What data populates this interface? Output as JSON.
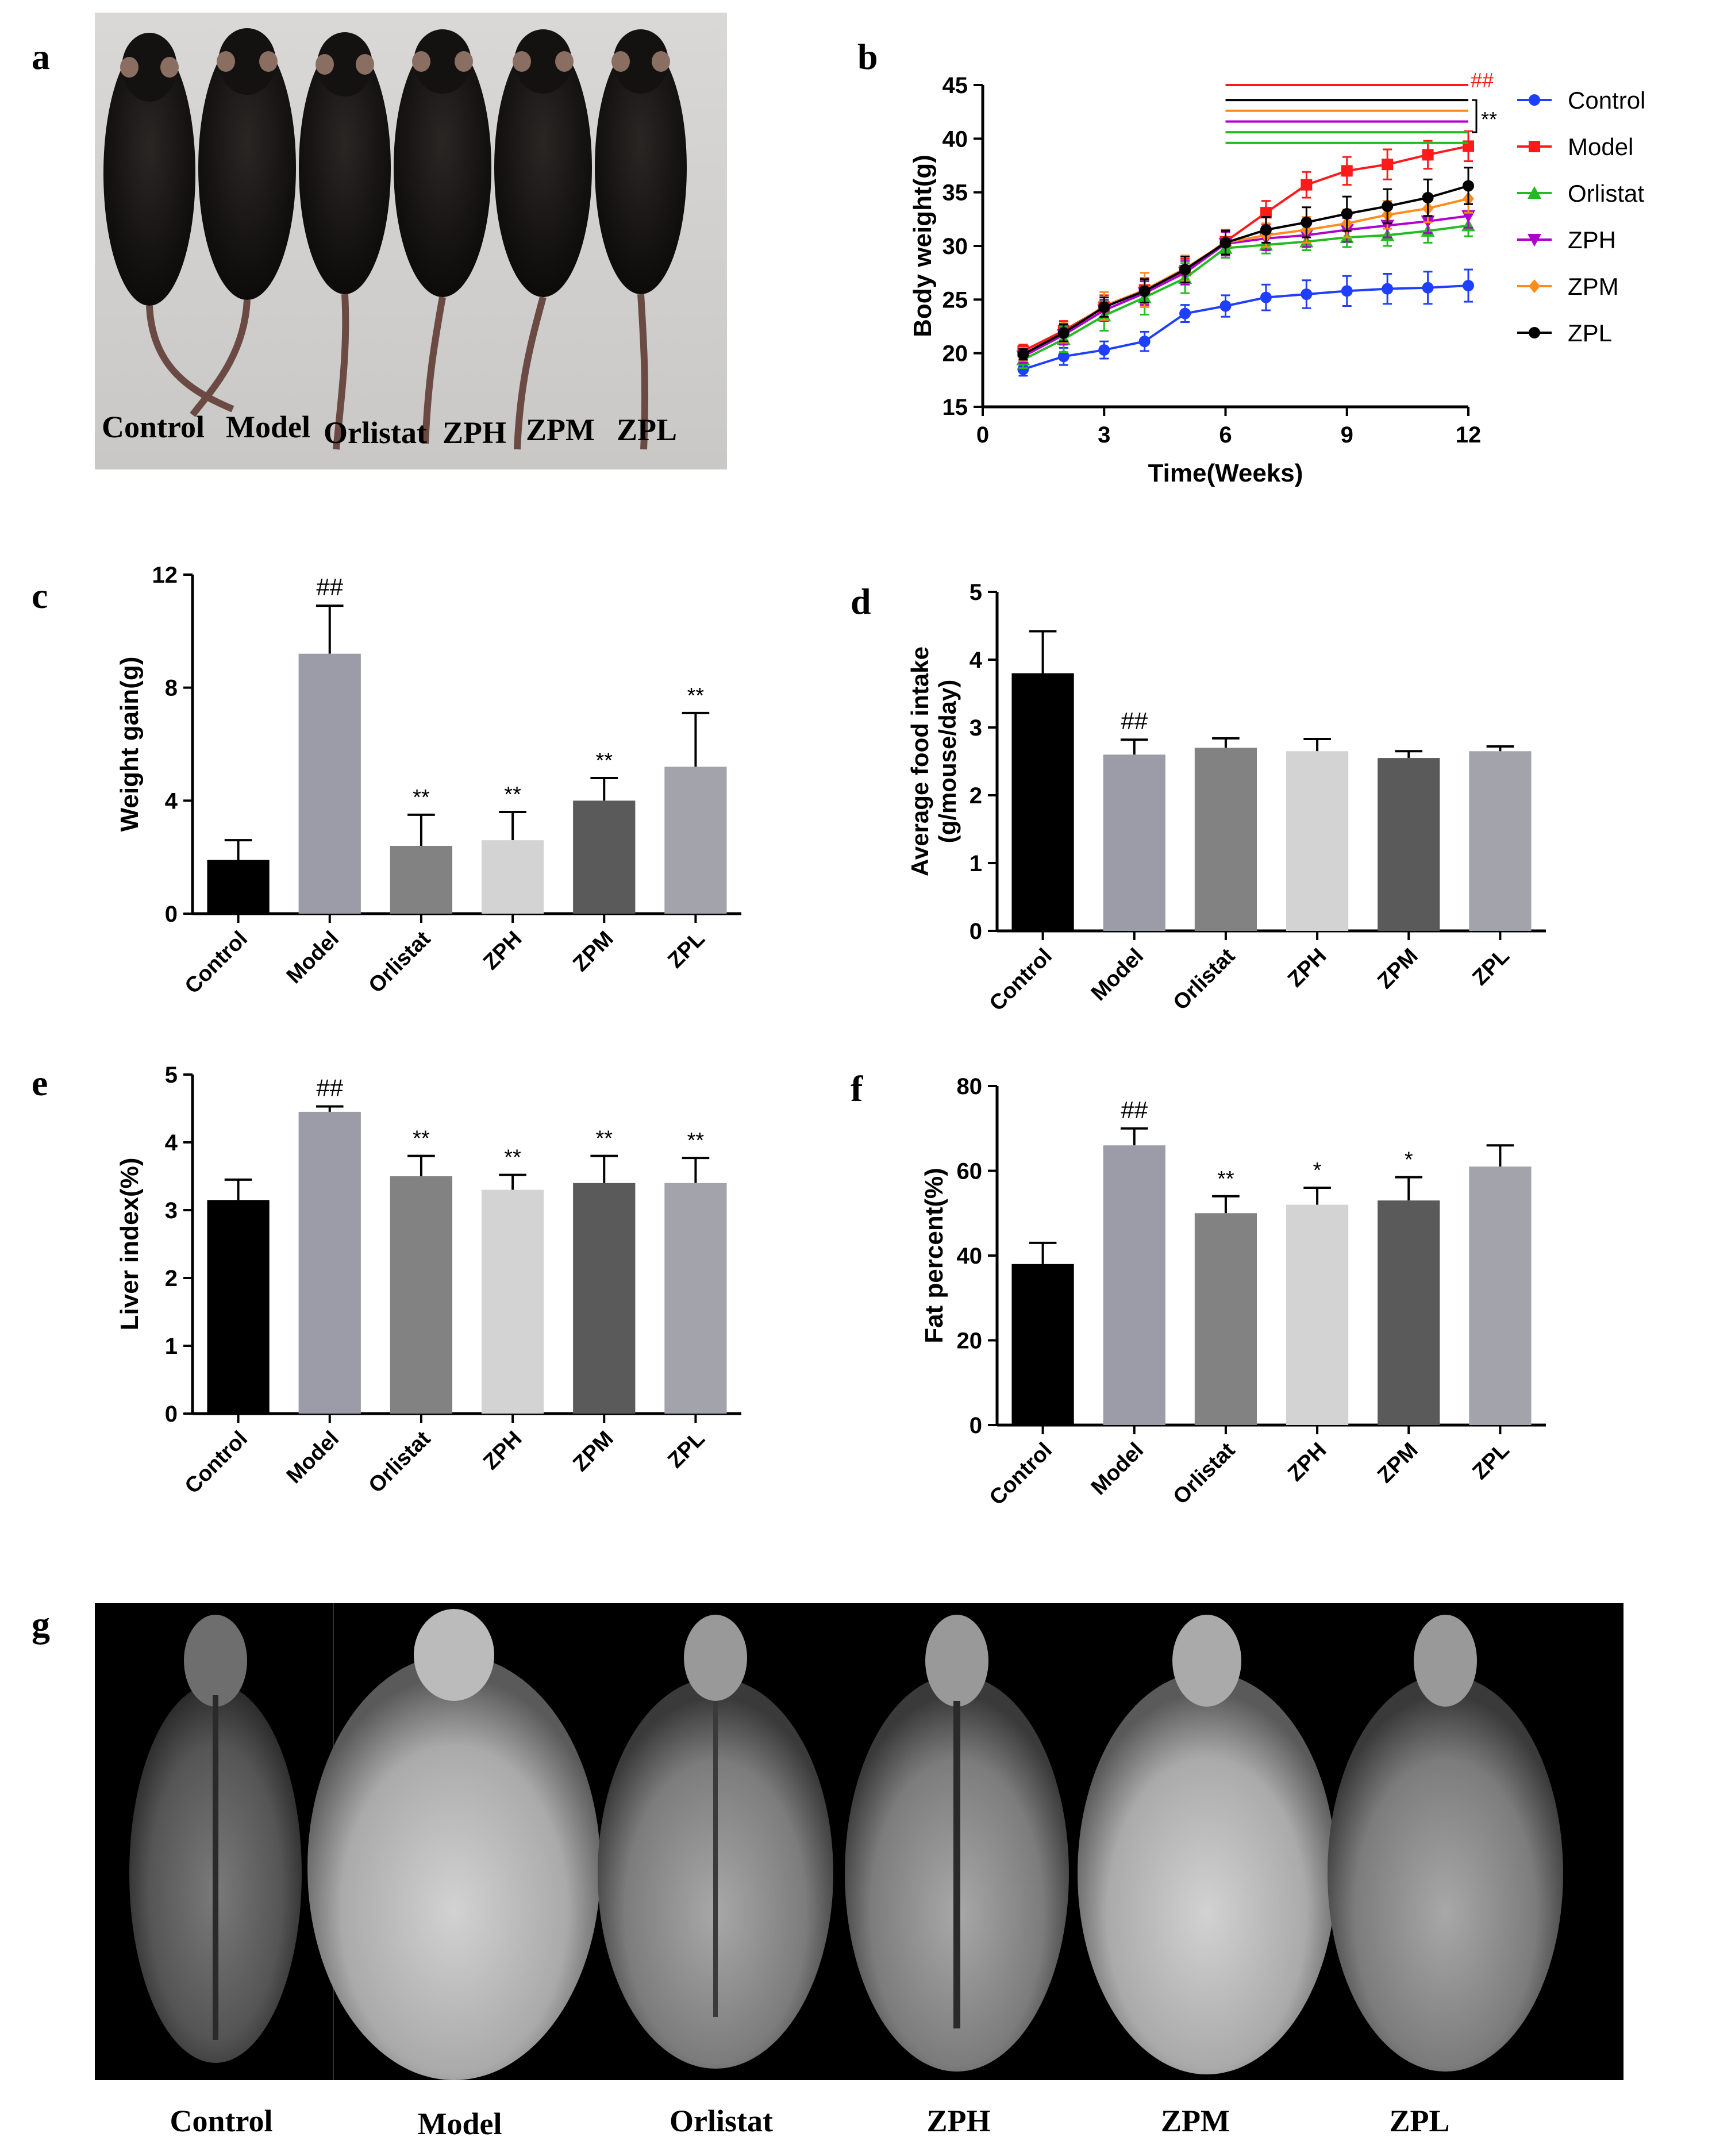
{
  "panels": {
    "a": "a",
    "b": "b",
    "c": "c",
    "d": "d",
    "e": "e",
    "f": "f",
    "g": "g"
  },
  "photo_labels": [
    "Control",
    "Model",
    "Orlistat",
    "ZPH",
    "ZPM",
    "ZPL"
  ],
  "xray_labels": [
    "Control",
    "Model",
    "Orlistat",
    "ZPH",
    "ZPM",
    "ZPL"
  ],
  "chart_data": [
    {
      "id": "b",
      "type": "line",
      "title": "",
      "xlabel": "Time(Weeks)",
      "ylabel": "Body weight(g)",
      "xlim": [
        0,
        12
      ],
      "ylim": [
        15,
        45
      ],
      "xticks": [
        0,
        3,
        6,
        9,
        12
      ],
      "yticks": [
        15,
        20,
        25,
        30,
        35,
        40,
        45
      ],
      "x": [
        1,
        2,
        3,
        4,
        5,
        6,
        7,
        8,
        9,
        10,
        11,
        12
      ],
      "legend_position": "right",
      "series": [
        {
          "name": "Control",
          "color": "#1f3fff",
          "marker": "circle",
          "values": [
            18.5,
            19.7,
            20.3,
            21.1,
            23.7,
            24.4,
            25.2,
            25.5,
            25.8,
            26.0,
            26.1,
            26.3
          ],
          "errors": [
            0.6,
            0.8,
            0.8,
            0.9,
            0.8,
            1.0,
            1.2,
            1.3,
            1.4,
            1.4,
            1.5,
            1.5
          ]
        },
        {
          "name": "Model",
          "color": "#ff1a1a",
          "marker": "square",
          "values": [
            20.2,
            22.1,
            24.3,
            25.9,
            27.7,
            30.4,
            33.1,
            35.7,
            37.0,
            37.6,
            38.5,
            39.3
          ],
          "errors": [
            0.6,
            0.9,
            1.1,
            1.1,
            1.1,
            1.1,
            1.1,
            1.2,
            1.3,
            1.4,
            1.3,
            1.4
          ]
        },
        {
          "name": "Orlistat",
          "color": "#22bb22",
          "marker": "triangle",
          "values": [
            19.4,
            21.3,
            23.5,
            25.2,
            27.0,
            29.8,
            30.1,
            30.4,
            30.8,
            31.0,
            31.4,
            31.9
          ],
          "errors": [
            0.8,
            1.2,
            1.4,
            1.6,
            1.4,
            0.9,
            0.8,
            0.8,
            0.9,
            1.0,
            1.1,
            1.0
          ]
        },
        {
          "name": "ZPH",
          "color": "#b000d0",
          "marker": "triangle-down",
          "values": [
            19.7,
            21.7,
            24.0,
            25.6,
            27.5,
            30.2,
            30.7,
            31.0,
            31.5,
            31.9,
            32.3,
            32.8
          ],
          "errors": [
            0.6,
            0.9,
            1.0,
            1.1,
            1.1,
            1.1,
            1.1,
            1.1,
            1.1,
            1.1,
            1.1,
            1.1
          ]
        },
        {
          "name": "ZPM",
          "color": "#ff8c1a",
          "marker": "diamond",
          "values": [
            19.9,
            21.9,
            24.4,
            25.9,
            27.9,
            30.3,
            31.0,
            31.5,
            32.1,
            32.9,
            33.5,
            34.4
          ],
          "errors": [
            0.6,
            0.9,
            1.3,
            1.6,
            1.2,
            1.1,
            1.1,
            1.2,
            1.3,
            1.3,
            1.3,
            1.3
          ]
        },
        {
          "name": "ZPL",
          "color": "#000000",
          "marker": "circle",
          "values": [
            19.9,
            21.9,
            24.3,
            25.8,
            27.8,
            30.3,
            31.5,
            32.2,
            33.0,
            33.7,
            34.5,
            35.6
          ],
          "errors": [
            0.5,
            0.8,
            0.9,
            1.1,
            1.2,
            1.1,
            1.2,
            1.4,
            1.6,
            1.6,
            1.7,
            1.7
          ]
        }
      ],
      "annotations": {
        "hash": "##",
        "hash_color": "#ff1a1a",
        "stars": "**",
        "bar_y": [
          45.0,
          43.6,
          42.6,
          41.6,
          40.6,
          39.6
        ],
        "bar_x_start": 6,
        "bar_x_end": 12,
        "bar_colors": [
          "#ff1a1a",
          "#000000",
          "#ff8c1a",
          "#b000d0",
          "#22bb22",
          "#22bb22"
        ]
      }
    },
    {
      "id": "c",
      "type": "bar",
      "title": "",
      "ylabel": "Weight gain(g)",
      "categories": [
        "Control",
        "Model",
        "Orlistat",
        "ZPH",
        "ZPM",
        "ZPL"
      ],
      "values": [
        1.9,
        9.2,
        2.4,
        2.6,
        4.0,
        5.2
      ],
      "errors": [
        0.7,
        1.7,
        1.1,
        1.0,
        0.8,
        1.9
      ],
      "colors": [
        "#000000",
        "#9c9ca8",
        "#828282",
        "#d3d3d3",
        "#5a5a5a",
        "#a3a3ab"
      ],
      "sig": [
        "",
        "##",
        "**",
        "**",
        "**",
        "**"
      ],
      "ylim": [
        0,
        12
      ],
      "yticks": [
        0,
        4,
        8,
        12
      ]
    },
    {
      "id": "d",
      "type": "bar",
      "title": "",
      "ylabel": "Average food intake",
      "ylabel2": "(g/mouse/day)",
      "categories": [
        "Control",
        "Model",
        "Orlistat",
        "ZPH",
        "ZPM",
        "ZPL"
      ],
      "values": [
        3.8,
        2.6,
        2.7,
        2.65,
        2.55,
        2.65
      ],
      "errors": [
        0.62,
        0.22,
        0.14,
        0.18,
        0.1,
        0.07
      ],
      "colors": [
        "#000000",
        "#9c9ca8",
        "#828282",
        "#d3d3d3",
        "#5a5a5a",
        "#a3a3ab"
      ],
      "sig": [
        "",
        "##",
        "",
        "",
        "",
        ""
      ],
      "ylim": [
        0,
        5
      ],
      "yticks": [
        0,
        1,
        2,
        3,
        4,
        5
      ]
    },
    {
      "id": "e",
      "type": "bar",
      "title": "",
      "ylabel": "Liver index(%)",
      "categories": [
        "Control",
        "Model",
        "Orlistat",
        "ZPH",
        "ZPM",
        "ZPL"
      ],
      "values": [
        3.15,
        4.45,
        3.5,
        3.3,
        3.4,
        3.4
      ],
      "errors": [
        0.3,
        0.08,
        0.3,
        0.22,
        0.4,
        0.37
      ],
      "colors": [
        "#000000",
        "#9c9ca8",
        "#828282",
        "#d3d3d3",
        "#5a5a5a",
        "#a3a3ab"
      ],
      "sig": [
        "",
        "##",
        "**",
        "**",
        "**",
        "**"
      ],
      "ylim": [
        0,
        5
      ],
      "yticks": [
        0,
        1,
        2,
        3,
        4,
        5
      ]
    },
    {
      "id": "f",
      "type": "bar",
      "title": "",
      "ylabel": "Fat percent(%)",
      "categories": [
        "Control",
        "Model",
        "Orlistat",
        "ZPH",
        "ZPM",
        "ZPL"
      ],
      "values": [
        38,
        66,
        50,
        52,
        53,
        61
      ],
      "errors": [
        5,
        4,
        4,
        4,
        5.5,
        5
      ],
      "colors": [
        "#000000",
        "#9c9ca8",
        "#828282",
        "#d3d3d3",
        "#5a5a5a",
        "#a3a3ab"
      ],
      "sig": [
        "",
        "##",
        "**",
        "*",
        "*",
        ""
      ],
      "ylim": [
        0,
        80
      ],
      "yticks": [
        0,
        20,
        40,
        60,
        80
      ]
    }
  ]
}
